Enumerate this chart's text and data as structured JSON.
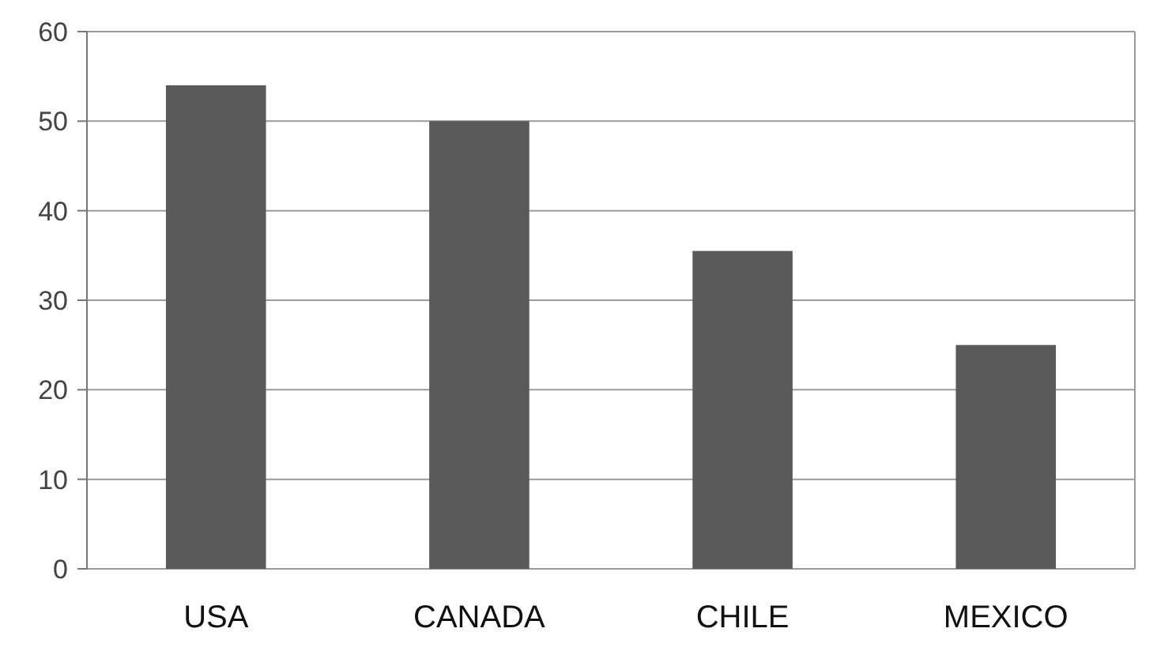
{
  "chart_data": {
    "type": "bar",
    "categories": [
      "USA",
      "CANADA",
      "CHILE",
      "MEXICO"
    ],
    "values": [
      54,
      50,
      35.5,
      25
    ],
    "color": "#5a5a5a",
    "ylim": [
      0,
      60
    ],
    "yticks": [
      0,
      10,
      20,
      30,
      40,
      50,
      60
    ],
    "grid": "y"
  }
}
